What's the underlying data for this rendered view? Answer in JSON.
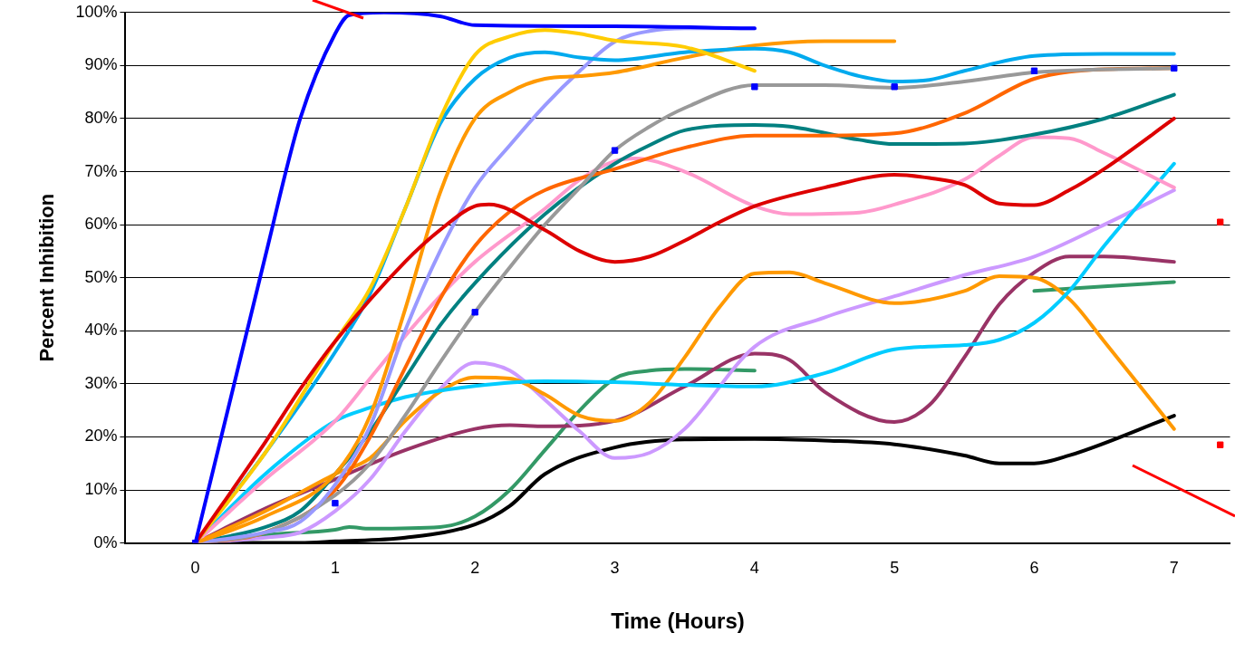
{
  "chart_data": {
    "type": "line",
    "xlabel": "Time (Hours)",
    "ylabel": "Percent Inhibition",
    "xlim": [
      -0.5,
      7.4
    ],
    "xticks": [
      0,
      1,
      2,
      3,
      4,
      5,
      6,
      7
    ],
    "ylim": [
      0,
      100
    ],
    "yticks": [
      {
        "value": 0,
        "label": "0%"
      },
      {
        "value": 10,
        "label": "10%"
      },
      {
        "value": 20,
        "label": "20%"
      },
      {
        "value": 30,
        "label": "30%"
      },
      {
        "value": 40,
        "label": "40%"
      },
      {
        "value": 50,
        "label": "50%"
      },
      {
        "value": 60,
        "label": "60%"
      },
      {
        "value": 70,
        "label": "70%"
      },
      {
        "value": 80,
        "label": "80%"
      },
      {
        "value": 90,
        "label": "90%"
      },
      {
        "value": 100,
        "label": "100%"
      }
    ],
    "grid": "y",
    "legend": false,
    "marker": "none",
    "line_style": "solid",
    "series": [
      {
        "color": "#0000ff",
        "x": [
          0,
          0.25,
          0.5,
          0.75,
          1,
          1.1,
          1.35,
          1.75,
          2,
          3,
          4
        ],
        "values": [
          0,
          27,
          54,
          80,
          96,
          99.5,
          100,
          99.3,
          97.6,
          97.4,
          97
        ]
      },
      {
        "color": "#dd0000",
        "x": [
          0,
          0.5,
          0.75,
          1,
          1.5,
          1.75,
          2,
          2.1,
          2.5,
          2.75,
          3,
          3.25,
          3.5,
          3.75,
          4,
          4.5,
          5,
          5.25,
          5.5,
          5.75,
          6,
          6.25,
          6.5,
          7
        ],
        "values": [
          0,
          19,
          29,
          38,
          53,
          59,
          63.5,
          63.8,
          59,
          55,
          53,
          54,
          57,
          60.5,
          63.5,
          67,
          69.4,
          68.8,
          67.5,
          64,
          63.7,
          66.5,
          70.5,
          80
        ]
      },
      {
        "color": "#ffcc00",
        "x": [
          0,
          0.5,
          1,
          1.25,
          1.5,
          1.75,
          2,
          2.25,
          2.5,
          2.75,
          3,
          3.5,
          4
        ],
        "values": [
          0,
          17,
          38,
          48,
          63,
          80,
          92,
          95.5,
          96.7,
          96,
          94.7,
          93.5,
          89
        ]
      },
      {
        "color": "#00aaee",
        "x": [
          0,
          0.5,
          1,
          1.25,
          1.5,
          1.75,
          2,
          2.25,
          2.5,
          2.75,
          3,
          3.5,
          4,
          4.25,
          4.5,
          4.75,
          5,
          5.25,
          5.5,
          6,
          6.5,
          7
        ],
        "values": [
          0,
          17,
          36,
          47,
          63,
          79,
          87.5,
          91.5,
          92.5,
          91.5,
          91,
          92.5,
          93.2,
          92.5,
          90,
          88,
          87,
          87.3,
          89,
          91.8,
          92.2,
          92.2
        ]
      },
      {
        "color": "#ff9900",
        "x": [
          0,
          0.5,
          1,
          1.25,
          1.5,
          1.75,
          2,
          2.25,
          2.5,
          2.75,
          3,
          3.5,
          4,
          4.5,
          5
        ],
        "values": [
          0,
          5,
          13,
          24,
          44,
          66,
          80,
          85,
          87.5,
          88,
          88.7,
          91.5,
          93.8,
          94.6,
          94.6
        ]
      },
      {
        "color": "#9999ff",
        "x": [
          0,
          0.5,
          0.75,
          1,
          1.25,
          1.5,
          1.75,
          2,
          2.25,
          2.5,
          2.75,
          3,
          3.25,
          3.5,
          4
        ],
        "values": [
          0,
          2,
          4,
          11,
          22,
          40,
          55,
          67,
          75,
          82.5,
          89,
          94.5,
          96.5,
          97,
          97
        ]
      },
      {
        "color": "#999999",
        "x": [
          0,
          0.5,
          1,
          1.25,
          1.5,
          1.75,
          2,
          2.25,
          2.5,
          2.75,
          3,
          3.25,
          3.5,
          4,
          4.5,
          5,
          5.5,
          6,
          7
        ],
        "values": [
          0,
          2,
          9,
          15,
          24,
          34,
          43.5,
          52,
          60,
          67,
          74,
          78.5,
          82,
          86.3,
          86.3,
          85.8,
          87,
          88.7,
          89.5
        ]
      },
      {
        "color": "#ff6600",
        "x": [
          0,
          0.5,
          1,
          1.25,
          1.5,
          1.75,
          2,
          2.25,
          2.5,
          3,
          3.5,
          4,
          4.5,
          5,
          5.5,
          6,
          6.5,
          7
        ],
        "values": [
          0,
          2,
          10,
          20,
          33,
          46,
          56,
          62.5,
          66.5,
          70.5,
          74.5,
          76.8,
          76.8,
          77.2,
          81,
          87.5,
          89.3,
          89.5
        ]
      },
      {
        "color": "#008080",
        "x": [
          0,
          0.5,
          0.75,
          1,
          1.25,
          1.5,
          1.75,
          2,
          2.5,
          3,
          3.25,
          3.5,
          4,
          4.25,
          4.75,
          5,
          5.5,
          6,
          6.5,
          7
        ],
        "values": [
          0,
          3,
          6,
          13,
          21,
          31,
          41,
          49,
          62,
          71.5,
          75,
          77.8,
          78.8,
          78.5,
          76,
          75.2,
          75.3,
          77,
          80,
          84.5
        ]
      },
      {
        "color": "#ff99cc",
        "x": [
          0,
          0.5,
          1,
          1.25,
          1.5,
          1.75,
          2,
          2.5,
          2.75,
          3,
          3.15,
          3.5,
          4,
          4.25,
          4.75,
          5,
          5.5,
          5.75,
          6,
          6.25,
          6.5,
          7
        ],
        "values": [
          0,
          12,
          23,
          31,
          39,
          46.5,
          53,
          63,
          68.5,
          72,
          72.5,
          70,
          63.5,
          62,
          62.3,
          63.8,
          68.5,
          73,
          76.5,
          76.3,
          73.5,
          67
        ]
      },
      {
        "color": "#00ccff",
        "x": [
          0,
          0.5,
          1,
          1.25,
          1.5,
          2,
          2.5,
          3,
          3.5,
          4,
          4.5,
          5,
          5.5,
          5.75,
          6,
          6.25,
          6.5,
          7
        ],
        "values": [
          0,
          13,
          23,
          25.5,
          27.5,
          29.6,
          30.5,
          30.3,
          29.8,
          29.5,
          32,
          36.5,
          37.3,
          38.3,
          41.5,
          47.5,
          56,
          71.5
        ]
      },
      {
        "color": "#ff9900",
        "x": [
          0,
          0.5,
          1,
          1.25,
          1.5,
          1.75,
          2,
          2.25,
          2.5,
          2.75,
          3,
          3.25,
          3.5,
          3.75,
          4,
          4.25,
          4.5,
          5,
          5.5,
          5.75,
          6,
          6.25,
          6.5,
          7
        ],
        "values": [
          0,
          6,
          13,
          16,
          23,
          28.5,
          31.2,
          31,
          28,
          24,
          23,
          26.5,
          35,
          44.5,
          50.8,
          51,
          49,
          45.2,
          47.5,
          50.3,
          50,
          46,
          38,
          21.5
        ]
      },
      {
        "color": "#cc99ff",
        "x": [
          0,
          0.5,
          0.75,
          1,
          1.25,
          1.5,
          1.75,
          2,
          2.25,
          2.5,
          2.75,
          3,
          3.25,
          3.5,
          4,
          4.5,
          5,
          5.5,
          6,
          6.5,
          7
        ],
        "values": [
          0,
          1,
          2,
          6,
          12,
          21,
          29,
          34,
          32.5,
          27,
          21,
          16,
          17,
          21.5,
          37,
          42.5,
          46.5,
          50.5,
          54,
          60,
          66.5
        ]
      },
      {
        "color": "#993366",
        "x": [
          0,
          0.5,
          1,
          1.5,
          2,
          2.25,
          2.5,
          3,
          3.5,
          4,
          4.25,
          4.5,
          5,
          5.25,
          5.5,
          5.75,
          6,
          6.25,
          6.5,
          7
        ],
        "values": [
          0,
          6.5,
          12,
          17.5,
          21.5,
          22.2,
          22,
          23,
          29.5,
          35.7,
          34.5,
          28.5,
          22.8,
          26,
          35,
          45,
          51,
          54,
          54,
          53
        ]
      },
      {
        "color": "#339966",
        "x": [
          0,
          0.5,
          1,
          1.1,
          1.25,
          1.75,
          2,
          2.25,
          2.5,
          2.75,
          3,
          3.25,
          3.5,
          4,
          5,
          6,
          7
        ],
        "values": [
          0,
          1.5,
          2.5,
          3,
          2.7,
          3,
          5,
          10,
          17.5,
          25,
          31,
          32.5,
          32.8,
          32.5,
          null,
          47.5,
          49.2
        ]
      },
      {
        "color": "#000000",
        "x": [
          0,
          0.75,
          1,
          1.5,
          2,
          2.25,
          2.5,
          3,
          3.5,
          4,
          4.5,
          5,
          5.5,
          5.75,
          6,
          6.25,
          7
        ],
        "values": [
          0,
          0,
          0.3,
          1,
          3.5,
          7,
          13,
          18,
          19.5,
          19.6,
          19.3,
          18.6,
          16.5,
          15,
          15,
          16.5,
          24
        ]
      },
      {
        "type": "scatter",
        "marker": "square",
        "color": "#0000ff",
        "x": [
          0,
          1,
          2,
          3,
          4,
          5,
          6,
          7
        ],
        "values": [
          0,
          7.5,
          43.5,
          74,
          86,
          86,
          89,
          89.5
        ]
      },
      {
        "type": "scatter",
        "marker": "square",
        "color": "#ff0000",
        "x": [
          7.33,
          7.33
        ],
        "values": [
          60.5,
          18.5
        ]
      }
    ]
  }
}
